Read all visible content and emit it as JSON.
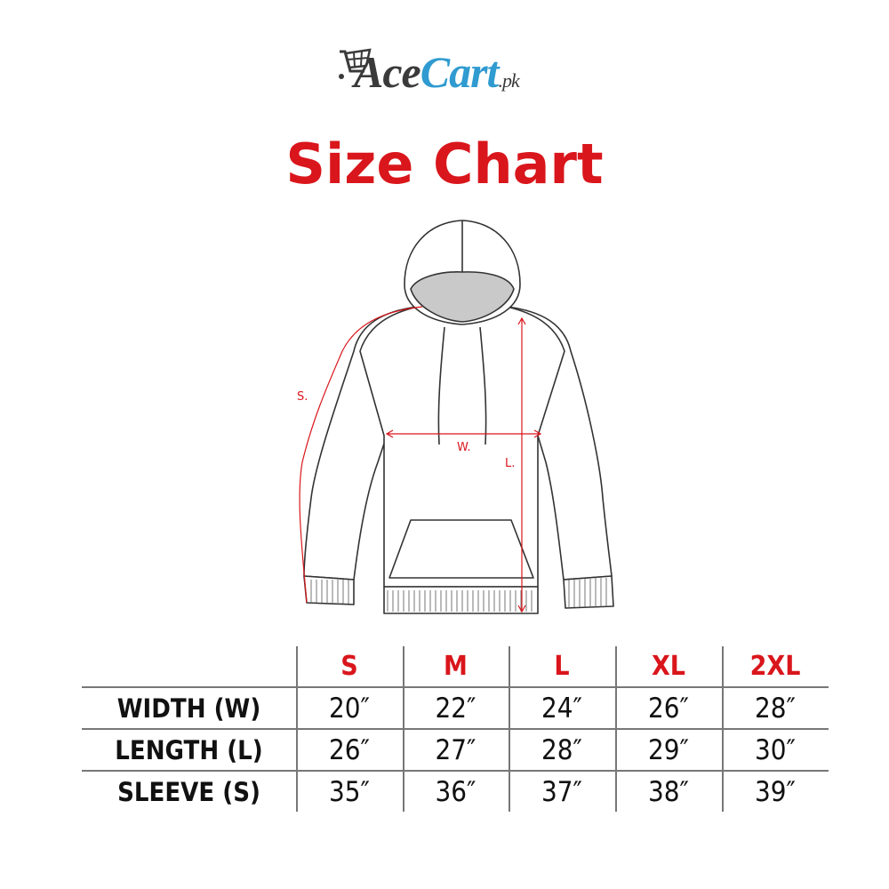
{
  "logo": {
    "text_dark": "Ace",
    "text_blue": "Cart",
    "suffix": ".pk",
    "icon": "shopping-cart-icon",
    "colors": {
      "dark": "#3a3a3a",
      "blue": "#2f9bd0"
    }
  },
  "title": "Size Chart",
  "accent_color": "#d9161c",
  "diagram": {
    "labels": {
      "sleeve": "S.",
      "width": "W.",
      "length": "L."
    }
  },
  "table": {
    "sizes": [
      "S",
      "M",
      "L",
      "XL",
      "2XL"
    ],
    "rows": [
      {
        "label": "WIDTH (W)",
        "values": [
          "20″",
          "22″",
          "24″",
          "26″",
          "28″"
        ]
      },
      {
        "label": "LENGTH (L)",
        "values": [
          "26″",
          "27″",
          "28″",
          "29″",
          "30″"
        ]
      },
      {
        "label": "SLEEVE (S)",
        "values": [
          "35″",
          "36″",
          "37″",
          "38″",
          "39″"
        ]
      }
    ]
  }
}
